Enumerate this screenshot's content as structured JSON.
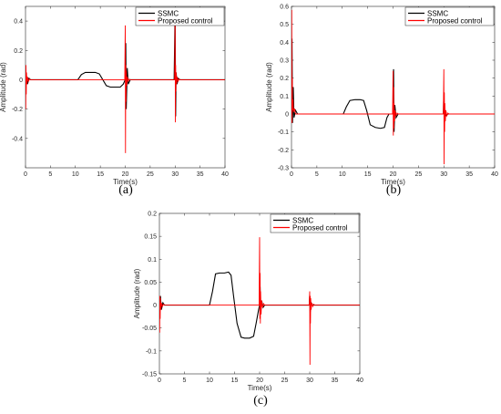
{
  "chart_data": [
    {
      "type": "line",
      "panel_label": "(a)",
      "xlabel": "Time(s)",
      "ylabel": "Amplitude (rad)",
      "xlim": [
        0,
        40
      ],
      "ylim": [
        -0.6,
        0.5
      ],
      "xticks": [
        0,
        5,
        10,
        15,
        20,
        25,
        30,
        35,
        40
      ],
      "yticks": [
        -0.4,
        -0.2,
        0,
        0.2,
        0.4
      ],
      "ytick_labels": [
        "-0.4",
        "-0.2",
        "0",
        "0.2",
        "0.4"
      ],
      "grid": false,
      "legend": "top-right",
      "series": [
        {
          "name": "SSMC",
          "color": "#000000",
          "x": [
            0,
            0.2,
            0.4,
            0.7,
            1.0,
            10.5,
            11.2,
            12.0,
            13.0,
            14.0,
            14.8,
            15.5,
            16.2,
            17.0,
            18.0,
            19.0,
            19.6,
            20.0,
            20.1,
            20.2,
            20.4,
            20.6,
            21.0,
            29.8,
            30.0,
            30.1,
            30.2,
            30.4,
            30.6,
            31.0,
            40
          ],
          "y": [
            0,
            0.02,
            -0.03,
            0.01,
            0,
            0,
            0.035,
            0.05,
            0.05,
            0.05,
            0.04,
            0.0,
            -0.04,
            -0.05,
            -0.05,
            -0.05,
            -0.03,
            0,
            0.25,
            -0.2,
            0.08,
            -0.03,
            0,
            0,
            0.48,
            -0.25,
            0.05,
            -0.03,
            0.01,
            0,
            0
          ]
        },
        {
          "name": "Proposed control",
          "color": "#ff0000",
          "x": [
            0,
            0.05,
            0.1,
            0.15,
            0.2,
            0.3,
            0.4,
            0.6,
            0.8,
            1.0,
            19.9,
            20.0,
            20.05,
            20.1,
            20.15,
            20.2,
            20.3,
            20.4,
            20.6,
            20.8,
            21.0,
            29.9,
            30.0,
            30.05,
            30.1,
            30.15,
            30.2,
            30.3,
            30.4,
            30.6,
            30.8,
            31.0,
            40
          ],
          "y": [
            0,
            -0.2,
            0.1,
            -0.1,
            0.05,
            -0.03,
            0.02,
            -0.01,
            0.005,
            0,
            0,
            0.37,
            -0.5,
            0.1,
            -0.15,
            0.06,
            -0.04,
            0.02,
            -0.01,
            0.005,
            0,
            0,
            0.45,
            -0.29,
            0.1,
            -0.08,
            0.05,
            -0.03,
            0.02,
            -0.01,
            0.005,
            0,
            0
          ]
        }
      ]
    },
    {
      "type": "line",
      "panel_label": "(b)",
      "xlabel": "Time(s)",
      "ylabel": "Amplitude (rad)",
      "xlim": [
        0,
        40
      ],
      "ylim": [
        -0.3,
        0.6
      ],
      "xticks": [
        0,
        5,
        10,
        15,
        20,
        25,
        30,
        35,
        40
      ],
      "yticks": [
        -0.3,
        -0.2,
        -0.1,
        0,
        0.1,
        0.2,
        0.3,
        0.4,
        0.5,
        0.6
      ],
      "ytick_labels": [
        "-0.3",
        "-0.2",
        "-0.1",
        "0",
        "0.1",
        "0.2",
        "0.3",
        "0.4",
        "0.5",
        "0.6"
      ],
      "grid": false,
      "legend": "top-right",
      "series": [
        {
          "name": "SSMC",
          "color": "#000000",
          "x": [
            0,
            0.1,
            0.2,
            0.35,
            0.5,
            0.8,
            1.2,
            10.2,
            10.8,
            11.5,
            12.5,
            13.5,
            14.2,
            14.8,
            15.5,
            16.5,
            17.5,
            18.3,
            18.8,
            19.2,
            20.0,
            20.1,
            20.2,
            20.35,
            20.6,
            21.0,
            29.9,
            30.0,
            30.1,
            30.2,
            30.4,
            30.8,
            40
          ],
          "y": [
            0,
            0.42,
            -0.05,
            0.15,
            -0.02,
            0.02,
            0,
            0,
            0.04,
            0.075,
            0.08,
            0.08,
            0.075,
            0.02,
            -0.06,
            -0.075,
            -0.08,
            -0.075,
            -0.02,
            0,
            0,
            0.25,
            -0.1,
            0.05,
            -0.02,
            0,
            0,
            0.12,
            -0.08,
            0.03,
            -0.01,
            0,
            0
          ]
        },
        {
          "name": "Proposed control",
          "color": "#ff0000",
          "x": [
            0,
            0.05,
            0.1,
            0.15,
            0.2,
            0.3,
            0.4,
            0.6,
            0.8,
            1.0,
            19.9,
            20.0,
            20.05,
            20.1,
            20.15,
            20.2,
            20.3,
            20.4,
            20.6,
            20.8,
            21.0,
            29.9,
            30.0,
            30.05,
            30.1,
            30.15,
            30.2,
            30.3,
            30.4,
            30.6,
            30.8,
            31.0,
            40
          ],
          "y": [
            0,
            0.58,
            -0.05,
            0.2,
            0.02,
            0.08,
            0.01,
            0.03,
            0.0,
            0,
            0,
            0.24,
            -0.12,
            0.15,
            -0.08,
            0.06,
            -0.04,
            0.02,
            -0.01,
            0.005,
            0,
            0,
            0.25,
            -0.28,
            0.12,
            -0.1,
            0.06,
            -0.04,
            0.02,
            -0.01,
            0.005,
            0,
            0
          ]
        }
      ]
    },
    {
      "type": "line",
      "panel_label": "(c)",
      "xlabel": "Time(s)",
      "ylabel": "Amplitude (rad)",
      "xlim": [
        0,
        40
      ],
      "ylim": [
        -0.15,
        0.2
      ],
      "xticks": [
        0,
        5,
        10,
        15,
        20,
        25,
        30,
        35,
        40
      ],
      "yticks": [
        -0.15,
        -0.1,
        -0.05,
        0,
        0.05,
        0.1,
        0.15,
        0.2
      ],
      "ytick_labels": [
        "-0.15",
        "-0.1",
        "-0.05",
        "0",
        "0.05",
        "0.1",
        "0.15",
        "0.2"
      ],
      "grid": false,
      "legend": "top-right",
      "series": [
        {
          "name": "SSMC",
          "color": "#000000",
          "x": [
            0,
            0.2,
            0.4,
            0.7,
            1.0,
            10.0,
            10.6,
            11.2,
            12.0,
            13.0,
            13.8,
            14.3,
            14.8,
            15.5,
            16.3,
            17.0,
            18.0,
            18.8,
            19.3,
            19.8,
            20.0,
            20.1,
            20.2,
            20.4,
            20.7,
            21.0,
            29.9,
            30.0,
            30.1,
            30.3,
            30.6,
            40
          ],
          "y": [
            0,
            0.02,
            -0.01,
            0.005,
            0,
            0,
            0.03,
            0.068,
            0.07,
            0.07,
            0.072,
            0.065,
            0.02,
            -0.04,
            -0.07,
            -0.072,
            -0.072,
            -0.068,
            -0.04,
            -0.01,
            0,
            0.04,
            -0.02,
            0.01,
            -0.005,
            0,
            0,
            0.02,
            -0.015,
            0.005,
            0,
            0
          ]
        },
        {
          "name": "Proposed control",
          "color": "#ff0000",
          "x": [
            0,
            0.05,
            0.1,
            0.15,
            0.2,
            0.3,
            0.4,
            0.6,
            0.8,
            1.0,
            19.9,
            20.0,
            20.05,
            20.1,
            20.15,
            20.2,
            20.3,
            20.4,
            20.6,
            20.8,
            21.0,
            29.9,
            30.0,
            30.05,
            30.1,
            30.15,
            30.2,
            30.3,
            30.4,
            30.6,
            30.8,
            31.0,
            40
          ],
          "y": [
            0,
            -0.06,
            0.02,
            -0.03,
            0.015,
            -0.01,
            0.005,
            -0.003,
            0.002,
            0,
            0,
            0.148,
            -0.03,
            0.07,
            -0.04,
            0.03,
            -0.02,
            0.01,
            -0.005,
            0.003,
            0,
            0,
            0.03,
            -0.13,
            0.02,
            -0.04,
            0.015,
            -0.01,
            0.005,
            -0.003,
            0.002,
            0,
            0
          ]
        }
      ]
    }
  ]
}
